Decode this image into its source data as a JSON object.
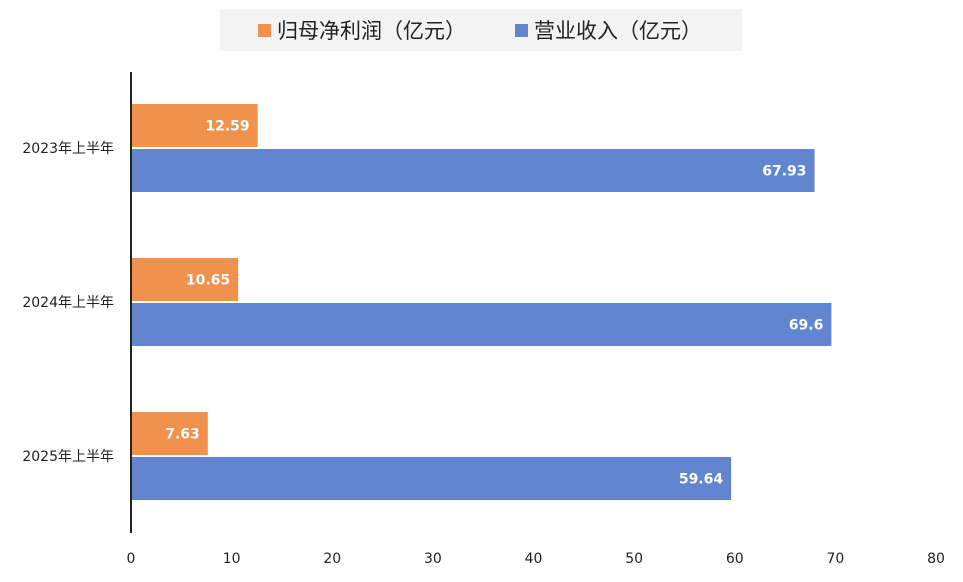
{
  "chart_data": {
    "type": "bar",
    "orientation": "horizontal",
    "categories": [
      "2023年上半年",
      "2024年上半年",
      "2025年上半年"
    ],
    "series": [
      {
        "name": "归母净利润（亿元）",
        "values": [
          12.59,
          10.65,
          7.63
        ],
        "color": "#f0914e",
        "labels": [
          "12.59",
          "10.65",
          "7.63"
        ]
      },
      {
        "name": "营业收入（亿元）",
        "values": [
          67.93,
          69.6,
          59.64
        ],
        "color": "#6186cf",
        "labels": [
          "67.93",
          "69.6",
          "59.64"
        ]
      }
    ],
    "xlim": [
      0,
      80
    ],
    "x_ticks": [
      "0",
      "10",
      "20",
      "30",
      "40",
      "50",
      "60",
      "70",
      "80"
    ],
    "xlabel": "",
    "ylabel": "",
    "title": "",
    "grid": false,
    "legend_position": "top"
  }
}
